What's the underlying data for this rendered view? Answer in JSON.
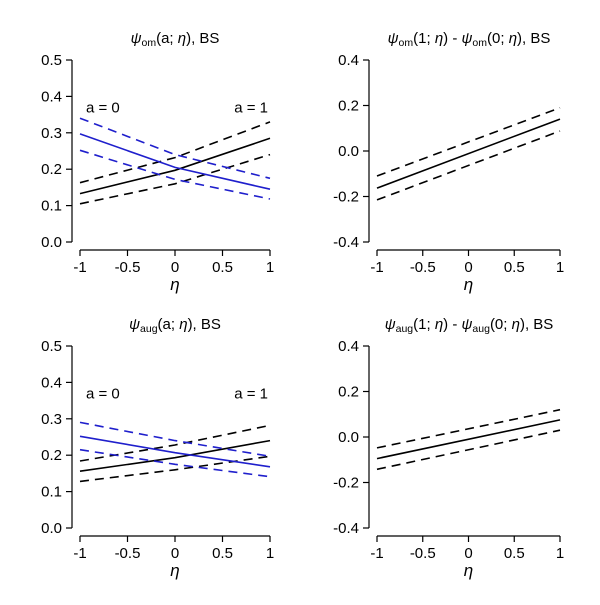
{
  "chart_data": [
    {
      "type": "line",
      "panel": "top-left",
      "title_parts": [
        "ψ",
        "om",
        "(a; ",
        "η",
        "), BS"
      ],
      "xlabel": "η",
      "xlim": [
        -1,
        1
      ],
      "ylim": [
        0,
        0.5
      ],
      "xticks": [
        -1,
        -0.5,
        0,
        0.5,
        1
      ],
      "xtick_labels": [
        "-1",
        "-0.5",
        "0",
        "0.5",
        "1"
      ],
      "yticks": [
        0,
        0.1,
        0.2,
        0.3,
        0.4,
        0.5
      ],
      "ytick_labels": [
        "0.0",
        "0.1",
        "0.2",
        "0.3",
        "0.4",
        "0.5"
      ],
      "annotations": [
        {
          "text": "a = 0",
          "x": -1,
          "y": 0.37,
          "align": "start"
        },
        {
          "text": "a = 1",
          "x": 1,
          "y": 0.37,
          "align": "end"
        }
      ],
      "series": [
        {
          "name": "a = 1 estimate",
          "color": "#000000",
          "dash": "solid",
          "x": [
            -1,
            0,
            1
          ],
          "y": [
            0.133,
            0.197,
            0.285
          ]
        },
        {
          "name": "a = 1 upper",
          "color": "#000000",
          "dash": "dashed",
          "x": [
            -1,
            0,
            1
          ],
          "y": [
            0.163,
            0.232,
            0.33
          ]
        },
        {
          "name": "a = 1 lower",
          "color": "#000000",
          "dash": "dashed",
          "x": [
            -1,
            0,
            1
          ],
          "y": [
            0.105,
            0.16,
            0.24
          ]
        },
        {
          "name": "a = 0 estimate",
          "color": "#1f1fcc",
          "dash": "solid",
          "x": [
            -1,
            0,
            1
          ],
          "y": [
            0.297,
            0.205,
            0.145
          ]
        },
        {
          "name": "a = 0 upper",
          "color": "#1f1fcc",
          "dash": "dashed",
          "x": [
            -1,
            0,
            1
          ],
          "y": [
            0.34,
            0.24,
            0.175
          ]
        },
        {
          "name": "a = 0 lower",
          "color": "#1f1fcc",
          "dash": "dashed",
          "x": [
            -1,
            0,
            1
          ],
          "y": [
            0.252,
            0.172,
            0.118
          ]
        }
      ]
    },
    {
      "type": "line",
      "panel": "top-right",
      "title_parts": [
        "ψ",
        "om",
        "(1; ",
        "η",
        ") - ",
        "ψ",
        "om",
        "(0; ",
        "η",
        "), BS"
      ],
      "xlabel": "η",
      "xlim": [
        -1,
        1
      ],
      "ylim": [
        -0.4,
        0.4
      ],
      "xticks": [
        -1,
        -0.5,
        0,
        0.5,
        1
      ],
      "xtick_labels": [
        "-1",
        "-0.5",
        "0",
        "0.5",
        "1"
      ],
      "yticks": [
        -0.4,
        -0.2,
        0,
        0.2,
        0.4
      ],
      "ytick_labels": [
        "-0.4",
        "-0.2",
        "0.0",
        "0.2",
        "0.4"
      ],
      "annotations": [],
      "series": [
        {
          "name": "difference estimate",
          "color": "#000000",
          "dash": "solid",
          "x": [
            -1,
            1
          ],
          "y": [
            -0.163,
            0.14
          ]
        },
        {
          "name": "difference upper",
          "color": "#000000",
          "dash": "dashed",
          "x": [
            -1,
            1
          ],
          "y": [
            -0.11,
            0.19
          ]
        },
        {
          "name": "difference lower",
          "color": "#000000",
          "dash": "dashed",
          "x": [
            -1,
            1
          ],
          "y": [
            -0.215,
            0.088
          ]
        }
      ]
    },
    {
      "type": "line",
      "panel": "bottom-left",
      "title_parts": [
        "ψ",
        "aug",
        "(a; ",
        "η",
        "), BS"
      ],
      "xlabel": "η",
      "xlim": [
        -1,
        1
      ],
      "ylim": [
        0,
        0.5
      ],
      "xticks": [
        -1,
        -0.5,
        0,
        0.5,
        1
      ],
      "xtick_labels": [
        "-1",
        "-0.5",
        "0",
        "0.5",
        "1"
      ],
      "yticks": [
        0,
        0.1,
        0.2,
        0.3,
        0.4,
        0.5
      ],
      "ytick_labels": [
        "0.0",
        "0.1",
        "0.2",
        "0.3",
        "0.4",
        "0.5"
      ],
      "annotations": [
        {
          "text": "a = 0",
          "x": -1,
          "y": 0.37,
          "align": "start"
        },
        {
          "text": "a = 1",
          "x": 1,
          "y": 0.37,
          "align": "end"
        }
      ],
      "series": [
        {
          "name": "a = 1 estimate",
          "color": "#000000",
          "dash": "solid",
          "x": [
            -1,
            0,
            1
          ],
          "y": [
            0.156,
            0.193,
            0.24
          ]
        },
        {
          "name": "a = 1 upper",
          "color": "#000000",
          "dash": "dashed",
          "x": [
            -1,
            0,
            1
          ],
          "y": [
            0.184,
            0.228,
            0.282
          ]
        },
        {
          "name": "a = 1 lower",
          "color": "#000000",
          "dash": "dashed",
          "x": [
            -1,
            0,
            1
          ],
          "y": [
            0.128,
            0.16,
            0.197
          ]
        },
        {
          "name": "a = 0 estimate",
          "color": "#1f1fcc",
          "dash": "solid",
          "x": [
            -1,
            0,
            1
          ],
          "y": [
            0.252,
            0.207,
            0.168
          ]
        },
        {
          "name": "a = 0 upper",
          "color": "#1f1fcc",
          "dash": "dashed",
          "x": [
            -1,
            0,
            1
          ],
          "y": [
            0.29,
            0.24,
            0.197
          ]
        },
        {
          "name": "a = 0 lower",
          "color": "#1f1fcc",
          "dash": "dashed",
          "x": [
            -1,
            0,
            1
          ],
          "y": [
            0.215,
            0.175,
            0.141
          ]
        }
      ]
    },
    {
      "type": "line",
      "panel": "bottom-right",
      "title_parts": [
        "ψ",
        "aug",
        "(1; ",
        "η",
        ") - ",
        "ψ",
        "aug",
        "(0; ",
        "η",
        "), BS"
      ],
      "xlabel": "η",
      "xlim": [
        -1,
        1
      ],
      "ylim": [
        -0.4,
        0.4
      ],
      "xticks": [
        -1,
        -0.5,
        0,
        0.5,
        1
      ],
      "xtick_labels": [
        "-1",
        "-0.5",
        "0",
        "0.5",
        "1"
      ],
      "yticks": [
        -0.4,
        -0.2,
        0,
        0.2,
        0.4
      ],
      "ytick_labels": [
        "-0.4",
        "-0.2",
        "0.0",
        "0.2",
        "0.4"
      ],
      "annotations": [],
      "series": [
        {
          "name": "difference estimate",
          "color": "#000000",
          "dash": "solid",
          "x": [
            -1,
            1
          ],
          "y": [
            -0.095,
            0.075
          ]
        },
        {
          "name": "difference upper",
          "color": "#000000",
          "dash": "dashed",
          "x": [
            -1,
            1
          ],
          "y": [
            -0.048,
            0.12
          ]
        },
        {
          "name": "difference lower",
          "color": "#000000",
          "dash": "dashed",
          "x": [
            -1,
            1
          ],
          "y": [
            -0.142,
            0.03
          ]
        }
      ]
    }
  ]
}
